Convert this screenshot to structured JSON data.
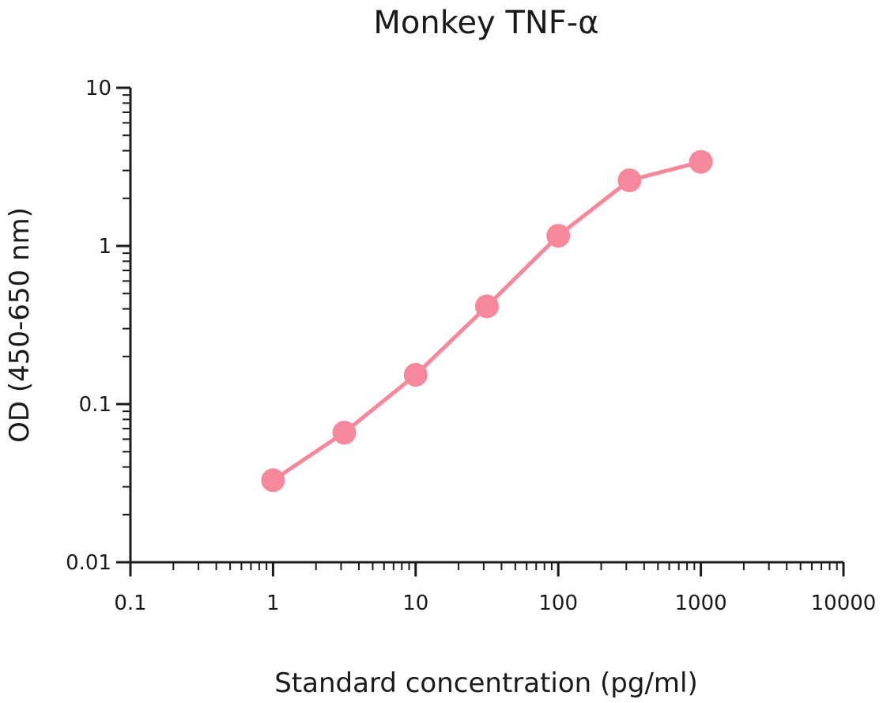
{
  "chart_data": {
    "type": "line",
    "title": "Monkey TNF-α",
    "xlabel": "Standard concentration (pg/ml)",
    "ylabel": "OD (450-650 nm)",
    "x_scale": "log",
    "y_scale": "log",
    "xlim": [
      0.1,
      10000
    ],
    "ylim": [
      0.01,
      10
    ],
    "x_ticks": [
      0.1,
      1,
      10,
      100,
      1000,
      10000
    ],
    "x_tick_labels": [
      "0.1",
      "1",
      "10",
      "100",
      "1000",
      "10000"
    ],
    "y_ticks": [
      0.01,
      0.1,
      1,
      10
    ],
    "y_tick_labels": [
      "0.01",
      "0.1",
      "1",
      "10"
    ],
    "grid": false,
    "legend": "none",
    "series": [
      {
        "color": "#f7889b",
        "marker": "circle",
        "x": [
          1,
          3.16,
          10,
          31.6,
          100,
          316,
          1000
        ],
        "y": [
          0.033,
          0.066,
          0.153,
          0.415,
          1.16,
          2.6,
          3.4
        ]
      }
    ]
  }
}
